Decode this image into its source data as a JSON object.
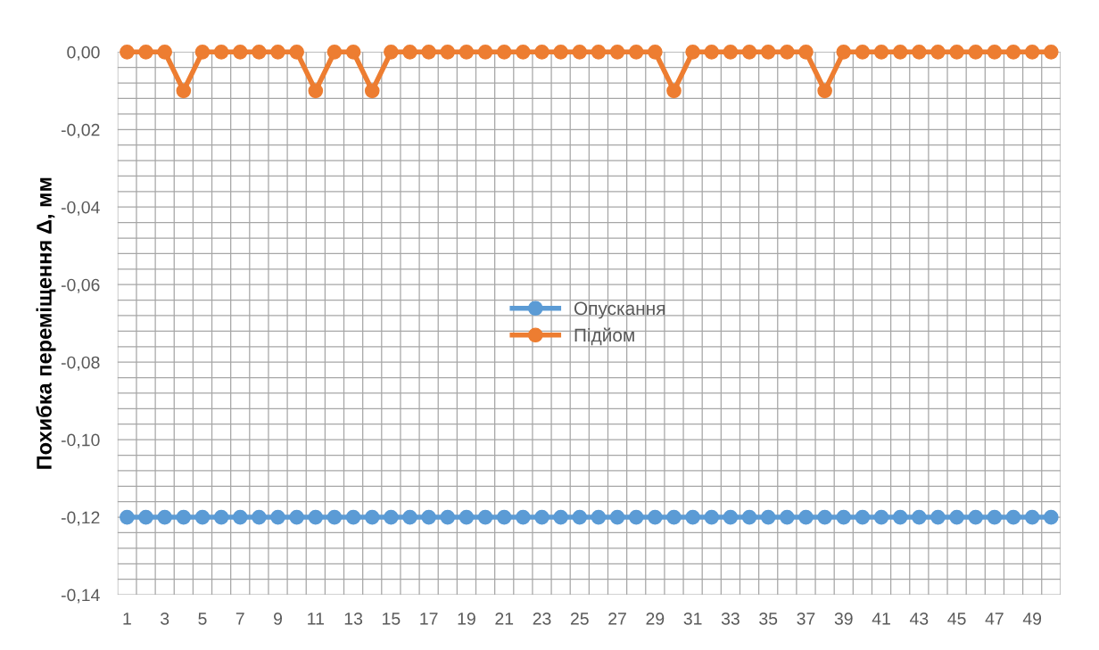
{
  "chart_data": {
    "type": "line",
    "ylabel": "Похибка переміщення Δ, мм",
    "categories": [
      "1",
      null,
      "3",
      null,
      "5",
      null,
      "7",
      null,
      "9",
      null,
      "11",
      null,
      "13",
      null,
      "15",
      null,
      "17",
      null,
      "19",
      null,
      "21",
      null,
      "23",
      null,
      "25",
      null,
      "27",
      null,
      "29",
      null,
      "31",
      null,
      "33",
      null,
      "35",
      null,
      "37",
      null,
      "39",
      null,
      "41",
      null,
      "43",
      null,
      "45",
      null,
      "47",
      null,
      "49",
      null
    ],
    "series": [
      {
        "name": "Опускання",
        "color": "#5b9bd5",
        "values": [
          -0.12,
          -0.12,
          -0.12,
          -0.12,
          -0.12,
          -0.12,
          -0.12,
          -0.12,
          -0.12,
          -0.12,
          -0.12,
          -0.12,
          -0.12,
          -0.12,
          -0.12,
          -0.12,
          -0.12,
          -0.12,
          -0.12,
          -0.12,
          -0.12,
          -0.12,
          -0.12,
          -0.12,
          -0.12,
          -0.12,
          -0.12,
          -0.12,
          -0.12,
          -0.12,
          -0.12,
          -0.12,
          -0.12,
          -0.12,
          -0.12,
          -0.12,
          -0.12,
          -0.12,
          -0.12,
          -0.12,
          -0.12,
          -0.12,
          -0.12,
          -0.12,
          -0.12,
          -0.12,
          -0.12,
          -0.12,
          -0.12,
          -0.12
        ]
      },
      {
        "name": "Підйом",
        "color": "#ed7d31",
        "values": [
          0,
          0,
          0,
          -0.01,
          0,
          0,
          0,
          0,
          0,
          0,
          -0.01,
          0,
          0,
          -0.01,
          0,
          0,
          0,
          0,
          0,
          0,
          0,
          0,
          0,
          0,
          0,
          0,
          0,
          0,
          0,
          -0.01,
          0,
          0,
          0,
          0,
          0,
          0,
          0,
          -0.01,
          0,
          0,
          0,
          0,
          0,
          0,
          0,
          0,
          0,
          0,
          0,
          0
        ]
      }
    ],
    "ylim": [
      -0.14,
      0
    ],
    "yticks": [
      {
        "value": -0.14,
        "label": "-0,14"
      },
      {
        "value": -0.12,
        "label": "-0,12"
      },
      {
        "value": -0.1,
        "label": "-0,10"
      },
      {
        "value": -0.08,
        "label": "-0,08"
      },
      {
        "value": -0.06,
        "label": "-0,06"
      },
      {
        "value": -0.04,
        "label": "-0,04"
      },
      {
        "value": -0.02,
        "label": "-0,02"
      },
      {
        "value": 0,
        "label": "0,00"
      }
    ],
    "grid": true,
    "legend": "center",
    "marker": "circle",
    "line_style": "solid"
  }
}
